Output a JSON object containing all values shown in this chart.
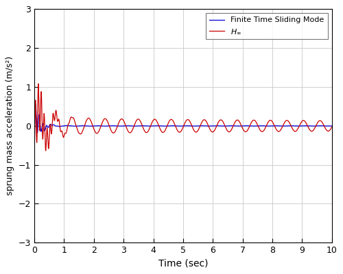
{
  "title": "",
  "xlabel": "Time (sec)",
  "ylabel": "sprung mass acceleration (m/s²)",
  "xlim": [
    0,
    10
  ],
  "ylim": [
    -3,
    3
  ],
  "xticks": [
    0,
    1,
    2,
    3,
    4,
    5,
    6,
    7,
    8,
    9,
    10
  ],
  "yticks": [
    -3,
    -2,
    -1,
    0,
    1,
    2,
    3
  ],
  "blue_color": "#0000dd",
  "red_color": "#cc0000",
  "background_color": "#ffffff",
  "grid_color": "#c8c8c8",
  "figsize": [
    5.0,
    4.0
  ],
  "dpi": 100,
  "dt": 0.0005,
  "t_end": 10.0
}
